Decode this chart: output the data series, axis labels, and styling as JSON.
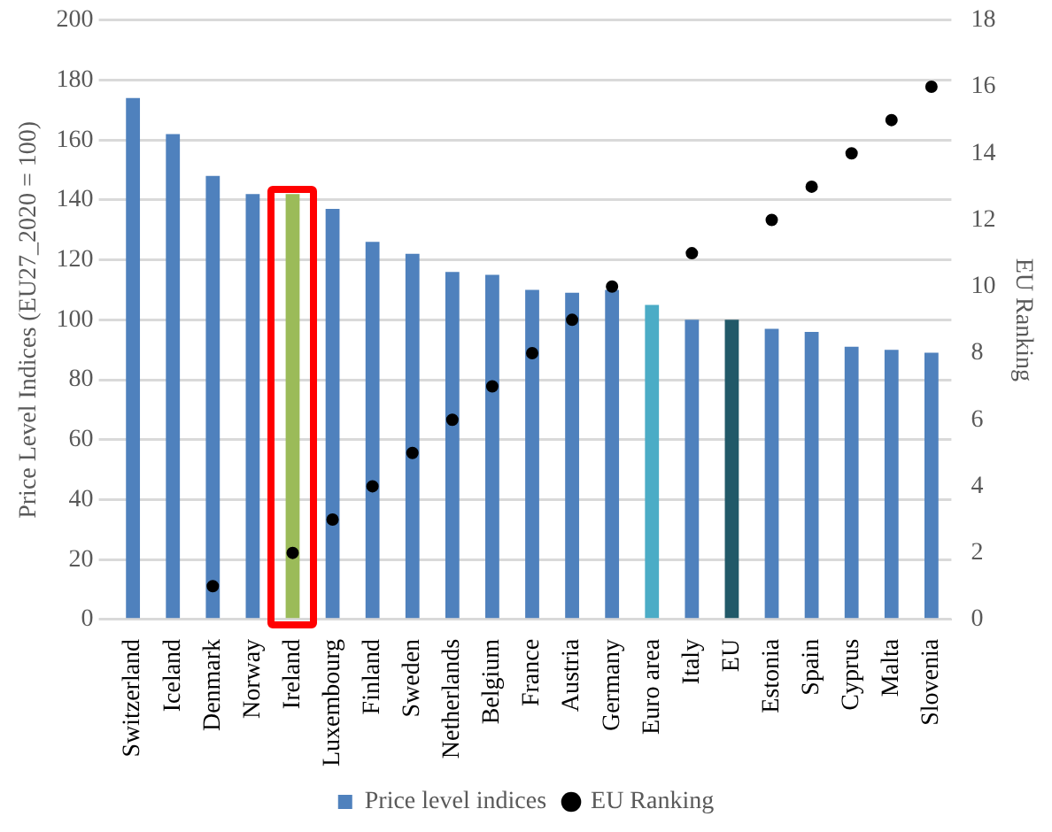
{
  "chart_data": {
    "type": "bar",
    "ylabel": "Price Level Indices (EU27_2020 = 100)",
    "y2label": "EU Ranking",
    "categories": [
      "Switzerland",
      "Iceland",
      "Denmark",
      "Norway",
      "Ireland",
      "Luxembourg",
      "Finland",
      "Sweden",
      "Netherlands",
      "Belgium",
      "France",
      "Austria",
      "Germany",
      "Euro area",
      "Italy",
      "EU",
      "Estonia",
      "Spain",
      "Cyprus",
      "Malta",
      "Slovenia"
    ],
    "series": [
      {
        "name": "Price level indices",
        "color": "#4f81bd",
        "colors": [
          "#4f81bd",
          "#4f81bd",
          "#4f81bd",
          "#4f81bd",
          "#9bbb59",
          "#4f81bd",
          "#4f81bd",
          "#4f81bd",
          "#4f81bd",
          "#4f81bd",
          "#4f81bd",
          "#4f81bd",
          "#4f81bd",
          "#4bacc6",
          "#4f81bd",
          "#215968",
          "#4f81bd",
          "#4f81bd",
          "#4f81bd",
          "#4f81bd",
          "#4f81bd"
        ],
        "values": [
          174,
          162,
          148,
          142,
          142,
          137,
          126,
          122,
          116,
          115,
          110,
          109,
          110,
          105,
          100,
          100,
          97,
          96,
          91,
          90,
          89
        ]
      },
      {
        "name": "EU Ranking",
        "type": "scatter",
        "axis": "y2",
        "color": "#000000",
        "values": [
          null,
          null,
          1,
          null,
          2,
          3,
          4,
          5,
          6,
          7,
          8,
          9,
          10,
          null,
          11,
          null,
          12,
          13,
          14,
          15,
          16
        ]
      }
    ],
    "ylim": [
      0,
      200
    ],
    "yticks": [
      0,
      20,
      40,
      60,
      80,
      100,
      120,
      140,
      160,
      180,
      200
    ],
    "y2lim": [
      0,
      18
    ],
    "y2ticks": [
      0,
      2,
      4,
      6,
      8,
      10,
      12,
      14,
      16,
      18
    ],
    "grid": "y",
    "legend": "bottom",
    "marker": "circle"
  }
}
